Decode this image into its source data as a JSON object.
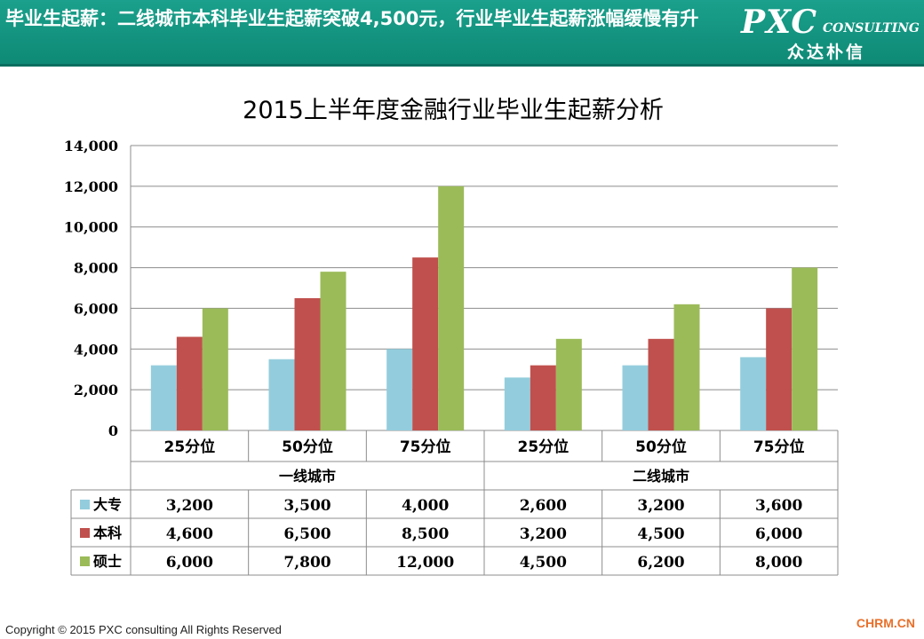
{
  "header": {
    "title": "毕业生起薪：二线城市本科毕业生起薪突破4,500元，行业毕业生起薪涨幅缓慢有升"
  },
  "logo": {
    "main": "PXC",
    "sub": "CONSULTING",
    "cn": "众达朴信"
  },
  "chart_data": {
    "type": "bar",
    "title": "2015上半年度金融行业毕业生起薪分析",
    "groups": [
      {
        "label": "一线城市",
        "categories": [
          "25分位",
          "50分位",
          "75分位"
        ]
      },
      {
        "label": "二线城市",
        "categories": [
          "25分位",
          "50分位",
          "75分位"
        ]
      }
    ],
    "series": [
      {
        "name": "大专",
        "color": "#93cddd",
        "values": [
          3200,
          3500,
          4000,
          2600,
          3200,
          3600
        ],
        "labels": [
          "3,200",
          "3,500",
          "4,000",
          "2,600",
          "3,200",
          "3,600"
        ]
      },
      {
        "name": "本科",
        "color": "#c0504d",
        "values": [
          4600,
          6500,
          8500,
          3200,
          4500,
          6000
        ],
        "labels": [
          "4,600",
          "6,500",
          "8,500",
          "3,200",
          "4,500",
          "6,000"
        ]
      },
      {
        "name": "硕士",
        "color": "#9bbb59",
        "values": [
          6000,
          7800,
          12000,
          4500,
          6200,
          8000
        ],
        "labels": [
          "6,000",
          "7,800",
          "12,000",
          "4,500",
          "6,200",
          "8,000"
        ]
      }
    ],
    "ylim": [
      0,
      14000
    ],
    "yticks": [
      0,
      2000,
      4000,
      6000,
      8000,
      10000,
      12000,
      14000
    ],
    "ytick_labels": [
      "0",
      "2,000",
      "4,000",
      "6,000",
      "8,000",
      "10,000",
      "12,000",
      "14,000"
    ],
    "grid": true,
    "legend": "data-table"
  },
  "footer": {
    "copyright": "Copyright © 2015  PXC consulting All Rights Reserved",
    "source": "CHRM.CN"
  }
}
